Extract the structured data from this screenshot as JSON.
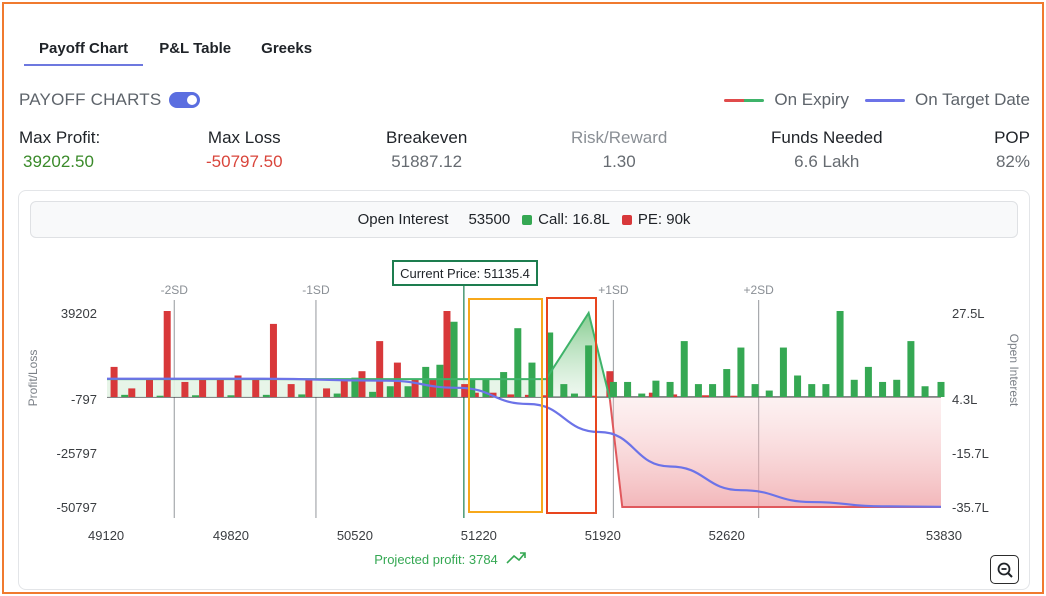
{
  "tabs": [
    {
      "label": "Payoff Chart",
      "active": true
    },
    {
      "label": "P&L Table",
      "active": false
    },
    {
      "label": "Greeks",
      "active": false
    }
  ],
  "payoff_charts_label": "PAYOFF CHARTS",
  "toggle_on": true,
  "legend": {
    "expiry": "On Expiry",
    "target": "On Target Date"
  },
  "stats": {
    "max_profit": {
      "label": "Max Profit:",
      "value": "39202.50"
    },
    "max_loss": {
      "label": "Max Loss",
      "value": "-50797.50"
    },
    "breakeven": {
      "label": "Breakeven",
      "value": "51887.12"
    },
    "risk_reward": {
      "label": "Risk/Reward",
      "value": "1.30"
    },
    "funds_needed": {
      "label": "Funds Needed",
      "value": "6.6 Lakh"
    },
    "pop": {
      "label": "POP",
      "value": "82%"
    }
  },
  "open_interest": {
    "label": "Open Interest",
    "strike": "53500",
    "call": "Call: 16.8L",
    "pe": "PE: 90k"
  },
  "colors": {
    "profit": "#3a8a2a",
    "loss": "#d9453b",
    "call": "#35a853",
    "pe": "#d8383a",
    "target": "#6c73e8",
    "accent": "#5b6ee0"
  },
  "chart_data": {
    "type": "bar",
    "current_price_label": "Current Price: 51135.4",
    "projected_profit": "Projected profit: 3784",
    "ylabel_left": "Profit/Loss",
    "ylabel_right": "Open Interest",
    "x_ticks": [
      "49120",
      "49820",
      "50520",
      "51220",
      "51920",
      "52620",
      "53830"
    ],
    "x_tick_values": [
      49120,
      49820,
      50520,
      51220,
      51920,
      52620,
      53830
    ],
    "y_left_ticks": [
      "39202",
      "-797",
      "-25797",
      "-50797"
    ],
    "y_left_values": [
      39202,
      -797,
      -25797,
      -50797
    ],
    "y_right_ticks": [
      "27.5L",
      "4.3L",
      "-15.7L",
      "-35.7L"
    ],
    "sd_labels": [
      "-2SD",
      "-1SD",
      "+1SD",
      "+2SD"
    ],
    "sd_values": [
      49500,
      50300,
      51980,
      52800
    ],
    "xlim": [
      49120,
      53830
    ],
    "ylim": [
      -50797,
      39202
    ],
    "current_price": 51135.4,
    "expiry_payoff": {
      "x": [
        49120,
        51600,
        51840,
        51960,
        52030,
        53830
      ],
      "y": [
        8500,
        8500,
        39202,
        -797,
        -50797,
        -50797
      ]
    },
    "target_payoff": {
      "x": [
        49120,
        50000,
        50700,
        51100,
        51500,
        51900,
        52300,
        52700,
        53100,
        53500,
        53830
      ],
      "y": [
        8700,
        8700,
        7800,
        4500,
        -3000,
        -16000,
        -32000,
        -43000,
        -48500,
        -50500,
        -50700
      ]
    },
    "call_oi": [
      [
        49220,
        0.5
      ],
      [
        49420,
        0.3
      ],
      [
        49620,
        0.4
      ],
      [
        49820,
        0.4
      ],
      [
        50020,
        0.5
      ],
      [
        50220,
        0.6
      ],
      [
        50420,
        0.8
      ],
      [
        50520,
        4.5
      ],
      [
        50620,
        1.2
      ],
      [
        50720,
        2.5
      ],
      [
        50820,
        2.5
      ],
      [
        50920,
        7.0
      ],
      [
        51000,
        7.5
      ],
      [
        51080,
        17.5
      ],
      [
        51180,
        4.0
      ],
      [
        51260,
        4.0
      ],
      [
        51360,
        5.8
      ],
      [
        51440,
        16.0
      ],
      [
        51520,
        8.0
      ],
      [
        51620,
        15.0
      ],
      [
        51700,
        3.0
      ],
      [
        51760,
        0.8
      ],
      [
        51840,
        12.0
      ],
      [
        51980,
        3.5
      ],
      [
        52060,
        3.5
      ],
      [
        52140,
        0.8
      ],
      [
        52220,
        3.8
      ],
      [
        52300,
        3.5
      ],
      [
        52380,
        13.0
      ],
      [
        52460,
        3.0
      ],
      [
        52540,
        3.0
      ],
      [
        52620,
        6.5
      ],
      [
        52700,
        11.5
      ],
      [
        52780,
        3.0
      ],
      [
        52860,
        1.5
      ],
      [
        52940,
        11.5
      ],
      [
        53020,
        5.0
      ],
      [
        53100,
        3.0
      ],
      [
        53180,
        3.0
      ],
      [
        53260,
        20.0
      ],
      [
        53340,
        4.0
      ],
      [
        53420,
        7.0
      ],
      [
        53500,
        3.5
      ],
      [
        53580,
        4.0
      ],
      [
        53660,
        13.0
      ],
      [
        53740,
        2.5
      ],
      [
        53830,
        3.5
      ]
    ],
    "pe_oi": [
      [
        49160,
        7.0
      ],
      [
        49260,
        2.0
      ],
      [
        49360,
        4.0
      ],
      [
        49460,
        20.0
      ],
      [
        49560,
        3.5
      ],
      [
        49660,
        4.0
      ],
      [
        49760,
        4.0
      ],
      [
        49860,
        5.0
      ],
      [
        49960,
        4.0
      ],
      [
        50060,
        17.0
      ],
      [
        50160,
        3.0
      ],
      [
        50260,
        4.0
      ],
      [
        50360,
        2.0
      ],
      [
        50460,
        4.0
      ],
      [
        50560,
        6.0
      ],
      [
        50660,
        13.0
      ],
      [
        50760,
        8.0
      ],
      [
        50860,
        4.0
      ],
      [
        50960,
        4.0
      ],
      [
        51040,
        20.0
      ],
      [
        51140,
        3.0
      ],
      [
        51200,
        1.0
      ],
      [
        51300,
        1.0
      ],
      [
        51400,
        0.6
      ],
      [
        51500,
        0.5
      ],
      [
        51600,
        0.4
      ],
      [
        51700,
        0.4
      ],
      [
        51760,
        0.3
      ],
      [
        51860,
        0.3
      ],
      [
        51960,
        6.0
      ],
      [
        52060,
        1.5
      ],
      [
        52200,
        1.0
      ],
      [
        52320,
        0.6
      ],
      [
        52500,
        0.4
      ],
      [
        52660,
        0.3
      ]
    ]
  }
}
